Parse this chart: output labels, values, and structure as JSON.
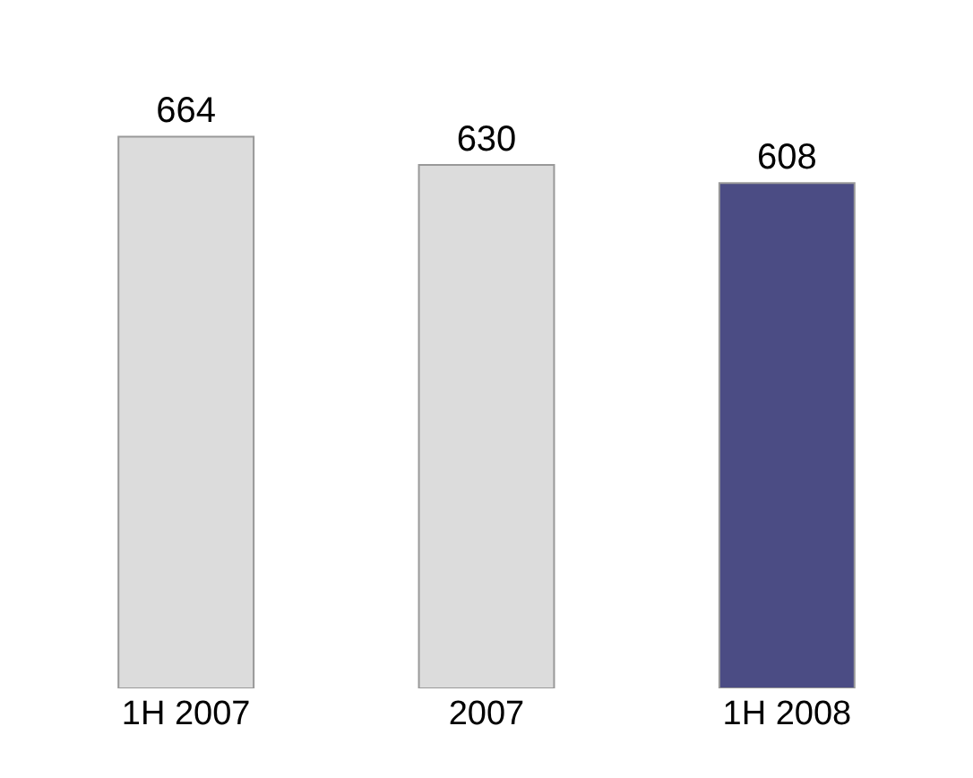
{
  "chart_data": {
    "type": "bar",
    "categories": [
      "1H 2007",
      "2007",
      "1H 2008"
    ],
    "values": [
      664,
      630,
      608
    ],
    "colors": [
      "#dcdcdc",
      "#dcdcdc",
      "#4b4c84"
    ],
    "data_labels": true
  }
}
